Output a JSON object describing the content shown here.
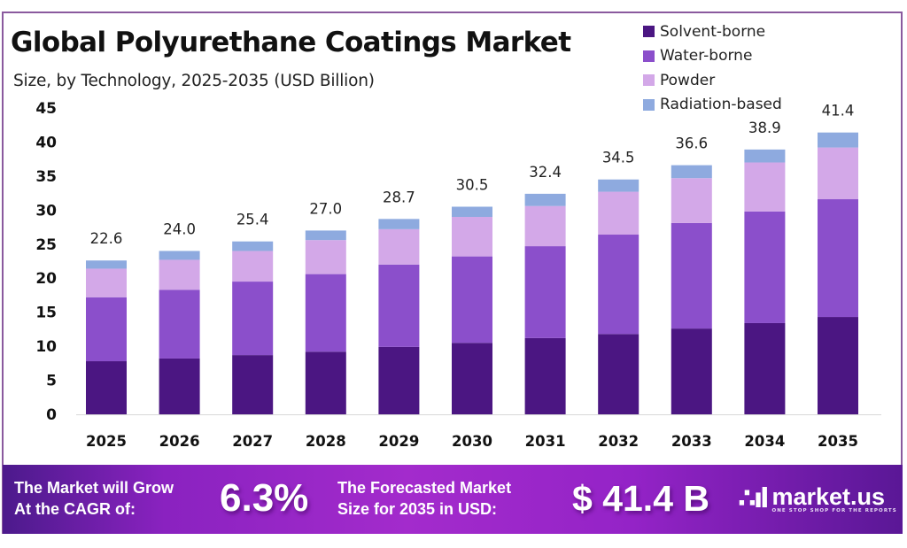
{
  "header": {
    "title": "Global Polyurethane Coatings Market",
    "subtitle": "Size, by Technology, 2025-2035 (USD Billion)"
  },
  "legend": [
    {
      "label": "Solvent-borne",
      "color": "#4b1682"
    },
    {
      "label": "Water-borne",
      "color": "#8b4fcb"
    },
    {
      "label": "Powder",
      "color": "#d3a8e8"
    },
    {
      "label": "Radiation-based",
      "color": "#8eaadf"
    }
  ],
  "chart_data": {
    "type": "bar",
    "stacked": true,
    "title": "Global Polyurethane Coatings Market",
    "subtitle": "Size, by Technology, 2025-2035 (USD Billion)",
    "xlabel": "",
    "ylabel": "",
    "ylim": [
      0,
      45
    ],
    "yticks": [
      0,
      5,
      10,
      15,
      20,
      25,
      30,
      35,
      40,
      45
    ],
    "grid": false,
    "legend_position": "top-right",
    "categories": [
      "2025",
      "2026",
      "2027",
      "2028",
      "2029",
      "2030",
      "2031",
      "2032",
      "2033",
      "2034",
      "2035"
    ],
    "series": [
      {
        "name": "Solvent-borne",
        "color": "#4b1682",
        "values": [
          7.8,
          8.2,
          8.7,
          9.2,
          9.9,
          10.5,
          11.2,
          11.8,
          12.6,
          13.4,
          14.3
        ]
      },
      {
        "name": "Water-borne",
        "color": "#8b4fcb",
        "values": [
          9.4,
          10.1,
          10.8,
          11.4,
          12.1,
          12.7,
          13.5,
          14.6,
          15.5,
          16.4,
          17.3
        ]
      },
      {
        "name": "Powder",
        "color": "#d3a8e8",
        "values": [
          4.2,
          4.4,
          4.5,
          5.0,
          5.2,
          5.8,
          5.9,
          6.3,
          6.6,
          7.2,
          7.6
        ]
      },
      {
        "name": "Radiation-based",
        "color": "#8eaadf",
        "values": [
          1.2,
          1.3,
          1.4,
          1.4,
          1.5,
          1.5,
          1.8,
          1.8,
          1.9,
          1.9,
          2.2
        ]
      }
    ],
    "totals": [
      "22.6",
      "24.0",
      "25.4",
      "27.0",
      "28.7",
      "30.5",
      "32.4",
      "34.5",
      "36.6",
      "38.9",
      "41.4"
    ]
  },
  "banner": {
    "cagr_label_line1": "The Market will Grow",
    "cagr_label_line2": "At the CAGR of:",
    "cagr_value": "6.3%",
    "forecast_label_line1": "The Forecasted Market",
    "forecast_label_line2": "Size for 2035 in USD:",
    "forecast_value": "$ 41.4 B",
    "logo_mark": "∴ıl",
    "logo_name": "market.us",
    "logo_tagline": "ONE STOP SHOP FOR THE REPORTS"
  }
}
